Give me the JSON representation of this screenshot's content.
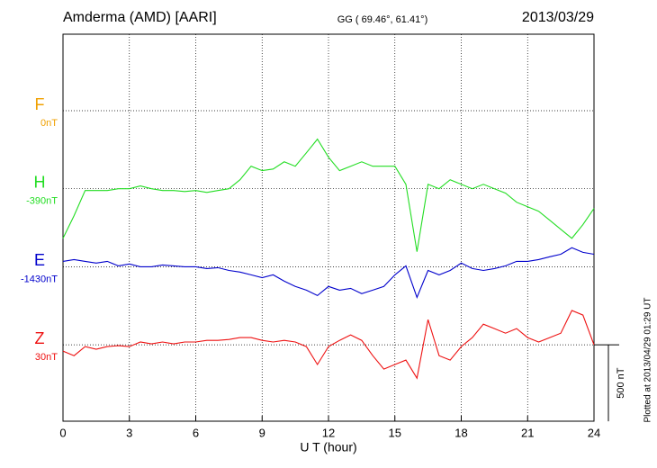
{
  "chart_data": {
    "type": "line",
    "title": "Amderma (AMD)  [AARI]",
    "subtitle": "GG ( 69.46°,  61.41°)",
    "date": "2013/03/29",
    "x_label": "U T (hour)",
    "footnote": "Plotted at 2013/04/29 01:29 UT",
    "scale_bar": {
      "value": 500,
      "label": "500 nT"
    },
    "xlim": [
      0,
      24
    ],
    "xticks": [
      0,
      3,
      6,
      9,
      12,
      15,
      18,
      21,
      24
    ],
    "grid": true,
    "x": [
      0,
      0.5,
      1,
      1.5,
      2,
      2.5,
      3,
      3.5,
      4,
      4.5,
      5,
      5.5,
      6,
      6.5,
      7,
      7.5,
      8,
      8.5,
      9,
      9.5,
      10,
      10.5,
      11,
      11.5,
      12,
      12.5,
      13,
      13.5,
      14,
      14.5,
      15,
      15.5,
      16,
      16.5,
      17,
      17.5,
      18,
      18.5,
      19,
      19.5,
      20,
      20.5,
      21,
      21.5,
      22,
      22.5,
      23,
      23.5,
      24
    ],
    "series": [
      {
        "name": "F",
        "offset_label": "0nT",
        "color": "#f0a000",
        "values": [
          null,
          null,
          null,
          null,
          null,
          null,
          null,
          null,
          null,
          null,
          null,
          null,
          null,
          null,
          null,
          null,
          null,
          null,
          null,
          null,
          null,
          null,
          null,
          null,
          null,
          null,
          null,
          null,
          null,
          null,
          null,
          null,
          null,
          null,
          null,
          null,
          null,
          null,
          null,
          null,
          null,
          null,
          null,
          null,
          null,
          null,
          null,
          null,
          null
        ]
      },
      {
        "name": "H",
        "offset_label": "-390nT",
        "color": "#22dd22",
        "values": [
          -324,
          -176,
          -12,
          -12,
          -12,
          0,
          0,
          18,
          0,
          -12,
          -12,
          -18,
          -12,
          -24,
          -12,
          0,
          59,
          147,
          118,
          129,
          176,
          147,
          235,
          324,
          206,
          118,
          147,
          176,
          147,
          147,
          147,
          29,
          -412,
          29,
          0,
          59,
          29,
          0,
          29,
          0,
          -29,
          -88,
          -118,
          -147,
          -206,
          -265,
          -324,
          -235,
          -129
        ]
      },
      {
        "name": "E",
        "offset_label": "-1430nT",
        "color": "#0000cc",
        "values": [
          35,
          47,
          35,
          24,
          35,
          6,
          18,
          0,
          0,
          12,
          6,
          0,
          0,
          -12,
          -6,
          -24,
          -35,
          -53,
          -71,
          -53,
          -94,
          -129,
          -153,
          -188,
          -129,
          -153,
          -141,
          -176,
          -153,
          -129,
          -53,
          6,
          -200,
          -24,
          -53,
          -24,
          24,
          -12,
          -24,
          -12,
          6,
          35,
          35,
          47,
          65,
          82,
          124,
          94,
          82
        ]
      },
      {
        "name": "Z",
        "offset_label": "30nT",
        "color": "#ee1111",
        "values": [
          -41,
          -71,
          -12,
          -29,
          -12,
          -6,
          -12,
          18,
          6,
          18,
          6,
          18,
          18,
          29,
          29,
          35,
          47,
          47,
          29,
          18,
          29,
          18,
          -12,
          -129,
          -12,
          29,
          65,
          29,
          -71,
          -159,
          -129,
          -100,
          -218,
          165,
          -71,
          -100,
          -12,
          47,
          135,
          106,
          76,
          106,
          47,
          18,
          47,
          76,
          224,
          194,
          0
        ]
      }
    ]
  }
}
